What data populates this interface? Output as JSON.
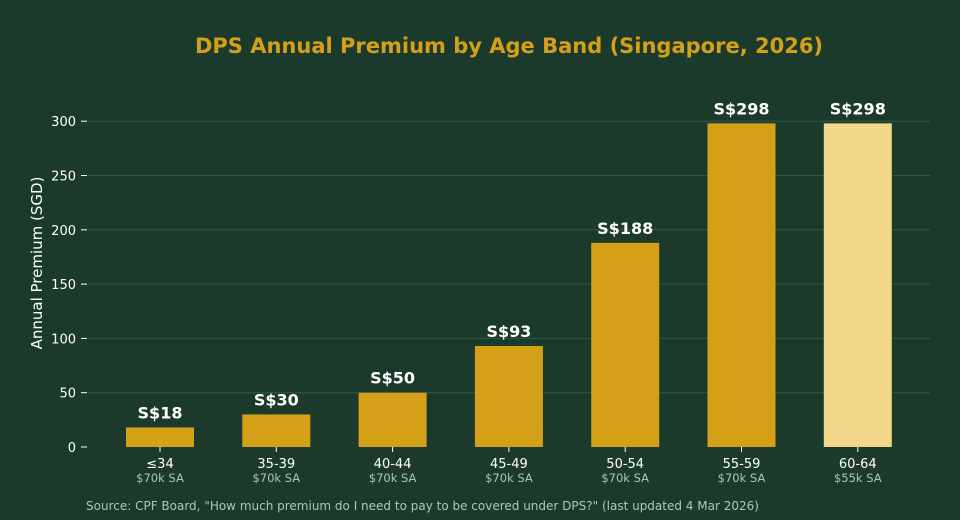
{
  "chart_data": {
    "type": "bar",
    "title": "DPS Annual Premium by Age Band (Singapore, 2026)",
    "xlabel": "",
    "ylabel": "Annual Premium (SGD)",
    "ylim": [
      0,
      330
    ],
    "yticks": [
      0,
      50,
      100,
      150,
      200,
      250,
      300
    ],
    "grid": true,
    "categories": [
      "≤34",
      "35-39",
      "40-44",
      "45-49",
      "50-54",
      "55-59",
      "60-64"
    ],
    "sublabels": [
      "$70k SA",
      "$70k SA",
      "$70k SA",
      "$70k SA",
      "$70k SA",
      "$70k SA",
      "$55k SA"
    ],
    "values": [
      18,
      30,
      50,
      93,
      188,
      298,
      298
    ],
    "data_labels": [
      "S$18",
      "S$30",
      "S$50",
      "S$93",
      "S$188",
      "S$298",
      "S$298"
    ],
    "highlight_index": 6,
    "colors": {
      "background": "#1b3a2c",
      "bar": "#d4a017",
      "bar_highlight": "#f2d68a",
      "title": "#d4a017",
      "text": "#ffffff",
      "sublabel": "#a9c9b3",
      "grid": "#2f5a44",
      "source": "#a9c9b3"
    },
    "source": "Source: CPF Board, \"How much premium do I need to pay to be covered under DPS?\" (last updated 4 Mar 2026)"
  }
}
